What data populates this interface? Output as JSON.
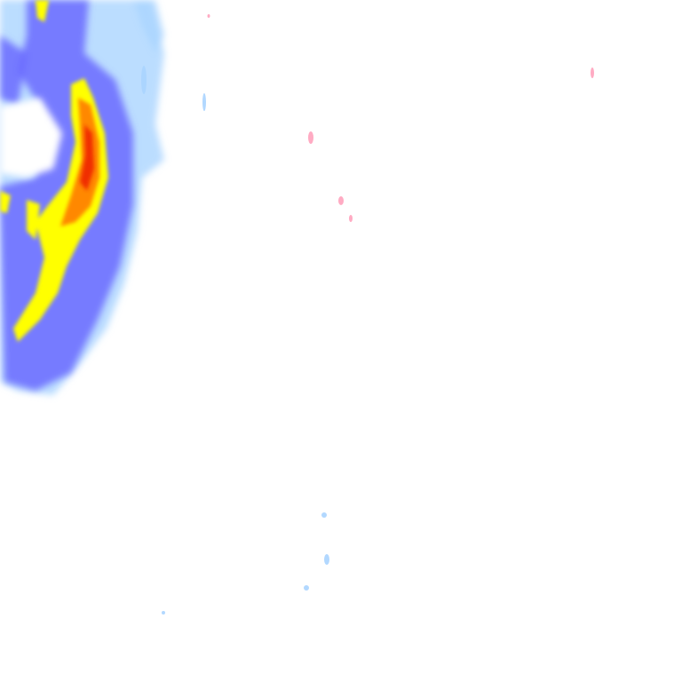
{
  "radar": {
    "colors": {
      "light": "#aad4ff",
      "medium": "#6a6aff",
      "strong": "#3c3cee",
      "heavy": "#ffff00",
      "intense": "#ff8800",
      "extreme": "#ee2200",
      "mixed": "#ff88aa"
    }
  }
}
